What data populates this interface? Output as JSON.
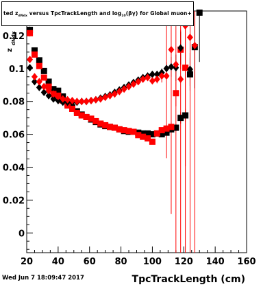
{
  "title": {
    "part1": "ted  z",
    "sub1": "dNdx",
    "part2": " versus TpcTrackLength and log",
    "sub2": "10",
    "part3": "(βγ) for Global muon+"
  },
  "timestamp": "Wed Jun  7 18:09:47 2017",
  "colors": {
    "black_series": "#000000",
    "red_series": "#ff0000",
    "axis": "#000000"
  },
  "chart_data": {
    "type": "scatter",
    "title": "",
    "xlabel": "TpcTrackLength (cm)",
    "ylabel": "z_dNdx",
    "xlim": [
      20,
      160
    ],
    "ylim": [
      -0.012,
      0.135
    ],
    "x_ticks": [
      20,
      40,
      60,
      80,
      100,
      120,
      140,
      160
    ],
    "y_ticks": [
      0,
      0.02,
      0.04,
      0.06,
      0.08,
      0.1,
      0.12
    ],
    "y_tick_labels": [
      "0",
      "0.02",
      "0.04",
      "0.06",
      "0.08",
      "0.1",
      "0.12"
    ],
    "grid": false,
    "legend": "none",
    "series": [
      {
        "marker": "square",
        "color": "#000000",
        "points": [
          [
            22,
            0.1235
          ],
          [
            25,
            0.111
          ],
          [
            28,
            0.105
          ],
          [
            31,
            0.0985
          ],
          [
            34,
            0.092
          ],
          [
            37,
            0.0875
          ],
          [
            40,
            0.0865
          ],
          [
            43,
            0.083
          ],
          [
            46,
            0.0785
          ],
          [
            49,
            0.0765
          ],
          [
            52,
            0.074
          ],
          [
            55,
            0.072
          ],
          [
            58,
            0.0705
          ],
          [
            61,
            0.069
          ],
          [
            64,
            0.0675
          ],
          [
            67,
            0.066
          ],
          [
            70,
            0.065
          ],
          [
            73,
            0.0645
          ],
          [
            76,
            0.064
          ],
          [
            79,
            0.063
          ],
          [
            82,
            0.062
          ],
          [
            85,
            0.0615
          ],
          [
            88,
            0.0615
          ],
          [
            91,
            0.061
          ],
          [
            94,
            0.0605
          ],
          [
            97,
            0.0605
          ],
          [
            100,
            0.06
          ],
          [
            103,
            0.0605
          ],
          [
            106,
            0.06
          ],
          [
            109,
            0.061
          ],
          [
            112,
            0.063
          ],
          [
            115,
            0.064
          ],
          [
            118,
            0.07
          ],
          [
            121,
            0.0715
          ],
          [
            124,
            0.0965
          ],
          [
            127,
            0.113
          ],
          [
            130,
            0.134
          ]
        ],
        "errors": [
          0.002,
          0.0018,
          0.0017,
          0.0016,
          0.0015,
          0.0014,
          0.0014,
          0.0013,
          0.0013,
          0.0012,
          0.0012,
          0.0012,
          0.0012,
          0.0012,
          0.0012,
          0.0012,
          0.0012,
          0.0012,
          0.0012,
          0.0012,
          0.0012,
          0.0012,
          0.0013,
          0.0013,
          0.0013,
          0.0014,
          0.0014,
          0.0015,
          0.0016,
          0.0018,
          0.002,
          0.0022,
          0.0035,
          0.004,
          0.01,
          0.025,
          0.03
        ]
      },
      {
        "marker": "square",
        "color": "#ff0000",
        "points": [
          [
            22,
            0.1215
          ],
          [
            25,
            0.1085
          ],
          [
            28,
            0.1015
          ],
          [
            31,
            0.0945
          ],
          [
            34,
            0.089
          ],
          [
            37,
            0.0845
          ],
          [
            40,
            0.0835
          ],
          [
            43,
            0.0805
          ],
          [
            46,
            0.0775
          ],
          [
            49,
            0.0755
          ],
          [
            52,
            0.073
          ],
          [
            55,
            0.0715
          ],
          [
            58,
            0.0705
          ],
          [
            61,
            0.0695
          ],
          [
            64,
            0.068
          ],
          [
            67,
            0.0665
          ],
          [
            70,
            0.0655
          ],
          [
            73,
            0.0645
          ],
          [
            76,
            0.064
          ],
          [
            79,
            0.063
          ],
          [
            82,
            0.0625
          ],
          [
            85,
            0.062
          ],
          [
            88,
            0.0615
          ],
          [
            91,
            0.0595
          ],
          [
            94,
            0.0585
          ],
          [
            97,
            0.0575
          ],
          [
            100,
            0.0555
          ],
          [
            103,
            0.0605
          ],
          [
            106,
            0.0625
          ],
          [
            109,
            0.0635
          ],
          [
            112,
            0.0645
          ],
          [
            115,
            0.085
          ],
          [
            118,
            0.1115
          ],
          [
            121,
            0.1005
          ]
        ],
        "errors": [
          0.002,
          0.0018,
          0.0017,
          0.0016,
          0.0015,
          0.0014,
          0.0014,
          0.0013,
          0.0013,
          0.0012,
          0.0012,
          0.0012,
          0.0012,
          0.0012,
          0.0012,
          0.0012,
          0.0012,
          0.0012,
          0.0012,
          0.0012,
          0.0012,
          0.0012,
          0.0013,
          0.0013,
          0.0013,
          0.0014,
          0.0014,
          0.0016,
          0.0018,
          0.0025,
          0.003,
          0.008,
          0.012,
          0.06
        ]
      },
      {
        "marker": "diamond",
        "color": "#000000",
        "points": [
          [
            22,
            0.1005
          ],
          [
            25,
            0.092
          ],
          [
            28,
            0.0885
          ],
          [
            31,
            0.0855
          ],
          [
            34,
            0.0835
          ],
          [
            37,
            0.0815
          ],
          [
            40,
            0.0805
          ],
          [
            43,
            0.0795
          ],
          [
            46,
            0.0795
          ],
          [
            49,
            0.0795
          ],
          [
            52,
            0.0795
          ],
          [
            55,
            0.08
          ],
          [
            58,
            0.08
          ],
          [
            61,
            0.0805
          ],
          [
            64,
            0.081
          ],
          [
            67,
            0.082
          ],
          [
            70,
            0.083
          ],
          [
            73,
            0.084
          ],
          [
            76,
            0.0855
          ],
          [
            79,
            0.087
          ],
          [
            82,
            0.0885
          ],
          [
            85,
            0.09
          ],
          [
            88,
            0.0915
          ],
          [
            91,
            0.093
          ],
          [
            94,
            0.0945
          ],
          [
            97,
            0.0955
          ],
          [
            100,
            0.0965
          ],
          [
            103,
            0.0965
          ],
          [
            106,
            0.0975
          ],
          [
            109,
            0.1
          ],
          [
            112,
            0.101
          ],
          [
            115,
            0.1005
          ],
          [
            118,
            0.1125
          ],
          [
            121,
            0.1345
          ],
          [
            124,
            0.0995
          ]
        ],
        "errors": [
          0.0018,
          0.0016,
          0.0015,
          0.0014,
          0.0013,
          0.0012,
          0.0012,
          0.0011,
          0.0011,
          0.0011,
          0.0011,
          0.0011,
          0.0011,
          0.0011,
          0.0011,
          0.0011,
          0.0011,
          0.0011,
          0.0012,
          0.0012,
          0.0012,
          0.0013,
          0.0013,
          0.0014,
          0.0015,
          0.0016,
          0.0018,
          0.002,
          0.0025,
          0.004,
          0.006,
          0.008,
          0.01,
          0.01,
          0.01
        ]
      },
      {
        "marker": "diamond",
        "color": "#ff0000",
        "points": [
          [
            22,
            0.1055
          ],
          [
            25,
            0.095
          ],
          [
            28,
            0.092
          ],
          [
            31,
            0.089
          ],
          [
            34,
            0.0865
          ],
          [
            37,
            0.0845
          ],
          [
            40,
            0.083
          ],
          [
            43,
            0.0815
          ],
          [
            46,
            0.081
          ],
          [
            49,
            0.0805
          ],
          [
            52,
            0.08
          ],
          [
            55,
            0.08
          ],
          [
            58,
            0.08
          ],
          [
            61,
            0.0805
          ],
          [
            64,
            0.081
          ],
          [
            67,
            0.0815
          ],
          [
            70,
            0.0825
          ],
          [
            73,
            0.0835
          ],
          [
            76,
            0.0845
          ],
          [
            79,
            0.086
          ],
          [
            82,
            0.0875
          ],
          [
            85,
            0.089
          ],
          [
            88,
            0.0905
          ],
          [
            91,
            0.092
          ],
          [
            94,
            0.0935
          ],
          [
            97,
            0.0945
          ],
          [
            100,
            0.0925
          ],
          [
            103,
            0.0935
          ],
          [
            106,
            0.0955
          ],
          [
            109,
            0.0955
          ],
          [
            112,
            0.1115
          ],
          [
            115,
            0.1025
          ],
          [
            118,
            0.0935
          ],
          [
            121,
            0.126
          ],
          [
            124,
            0.119
          ],
          [
            127,
            0.114
          ]
        ],
        "errors": [
          0.0018,
          0.0016,
          0.0015,
          0.0014,
          0.0013,
          0.0012,
          0.0012,
          0.0011,
          0.0011,
          0.0011,
          0.0011,
          0.0011,
          0.0011,
          0.0011,
          0.0011,
          0.0011,
          0.0011,
          0.0011,
          0.0012,
          0.0012,
          0.0012,
          0.0013,
          0.0013,
          0.0014,
          0.0015,
          0.0016,
          0.0018,
          0.0025,
          0.004,
          0.05,
          0.1,
          0.14,
          0.14,
          0.14,
          0.14,
          0.14
        ]
      }
    ]
  }
}
